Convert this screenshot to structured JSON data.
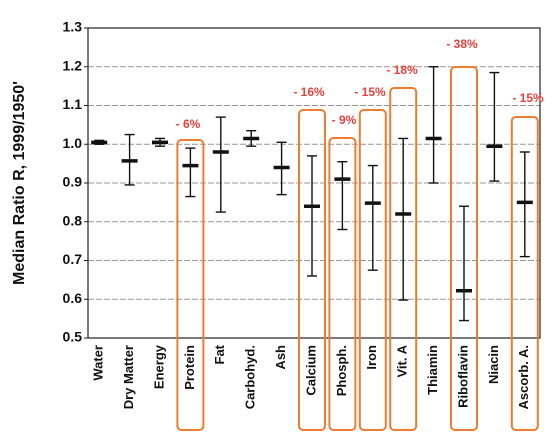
{
  "chart_data": {
    "type": "errorbar",
    "y_label": "Median Ratio R, 1999/1950'",
    "categories": [
      "Water",
      "Dry Matter",
      "Energy",
      "Protein",
      "Fat",
      "Carbohyd.",
      "Ash",
      "Calcium",
      "Phosph.",
      "Iron",
      "Vit. A",
      "Thiamin",
      "Riboflavin",
      "Niacin",
      "Ascorb. A."
    ],
    "median": [
      1.005,
      0.957,
      1.005,
      0.945,
      0.98,
      1.015,
      0.94,
      0.84,
      0.91,
      0.848,
      0.82,
      1.015,
      0.622,
      0.995,
      0.85
    ],
    "low": [
      1.0,
      0.895,
      0.995,
      0.865,
      0.825,
      0.995,
      0.87,
      0.66,
      0.78,
      0.675,
      0.598,
      0.9,
      0.545,
      0.905,
      0.71
    ],
    "high": [
      1.01,
      1.025,
      1.015,
      0.99,
      1.07,
      1.035,
      1.005,
      0.97,
      0.955,
      0.945,
      1.015,
      1.2,
      0.84,
      1.185,
      0.98
    ],
    "color": "#111111",
    "ylim": [
      0.5,
      1.3
    ],
    "yticks": [
      0.5,
      0.6,
      0.7,
      0.8,
      0.9,
      {
        "value": 1,
        "label": "1.0"
      },
      1.1,
      1.2,
      1.3
    ],
    "grid": true,
    "highlight_color": "#ed7d31",
    "annotations": [
      {
        "category": "Protein",
        "text": "- 6%"
      },
      {
        "category": "Calcium",
        "text": "- 16%"
      },
      {
        "category": "Phosph.",
        "text": "- 9%"
      },
      {
        "category": "Iron",
        "text": "- 15%"
      },
      {
        "category": "Vit. A",
        "text": "- 18%"
      },
      {
        "category": "Riboflavin",
        "text": "- 38%"
      },
      {
        "category": "Ascorb. A.",
        "text": "- 15%"
      }
    ]
  }
}
